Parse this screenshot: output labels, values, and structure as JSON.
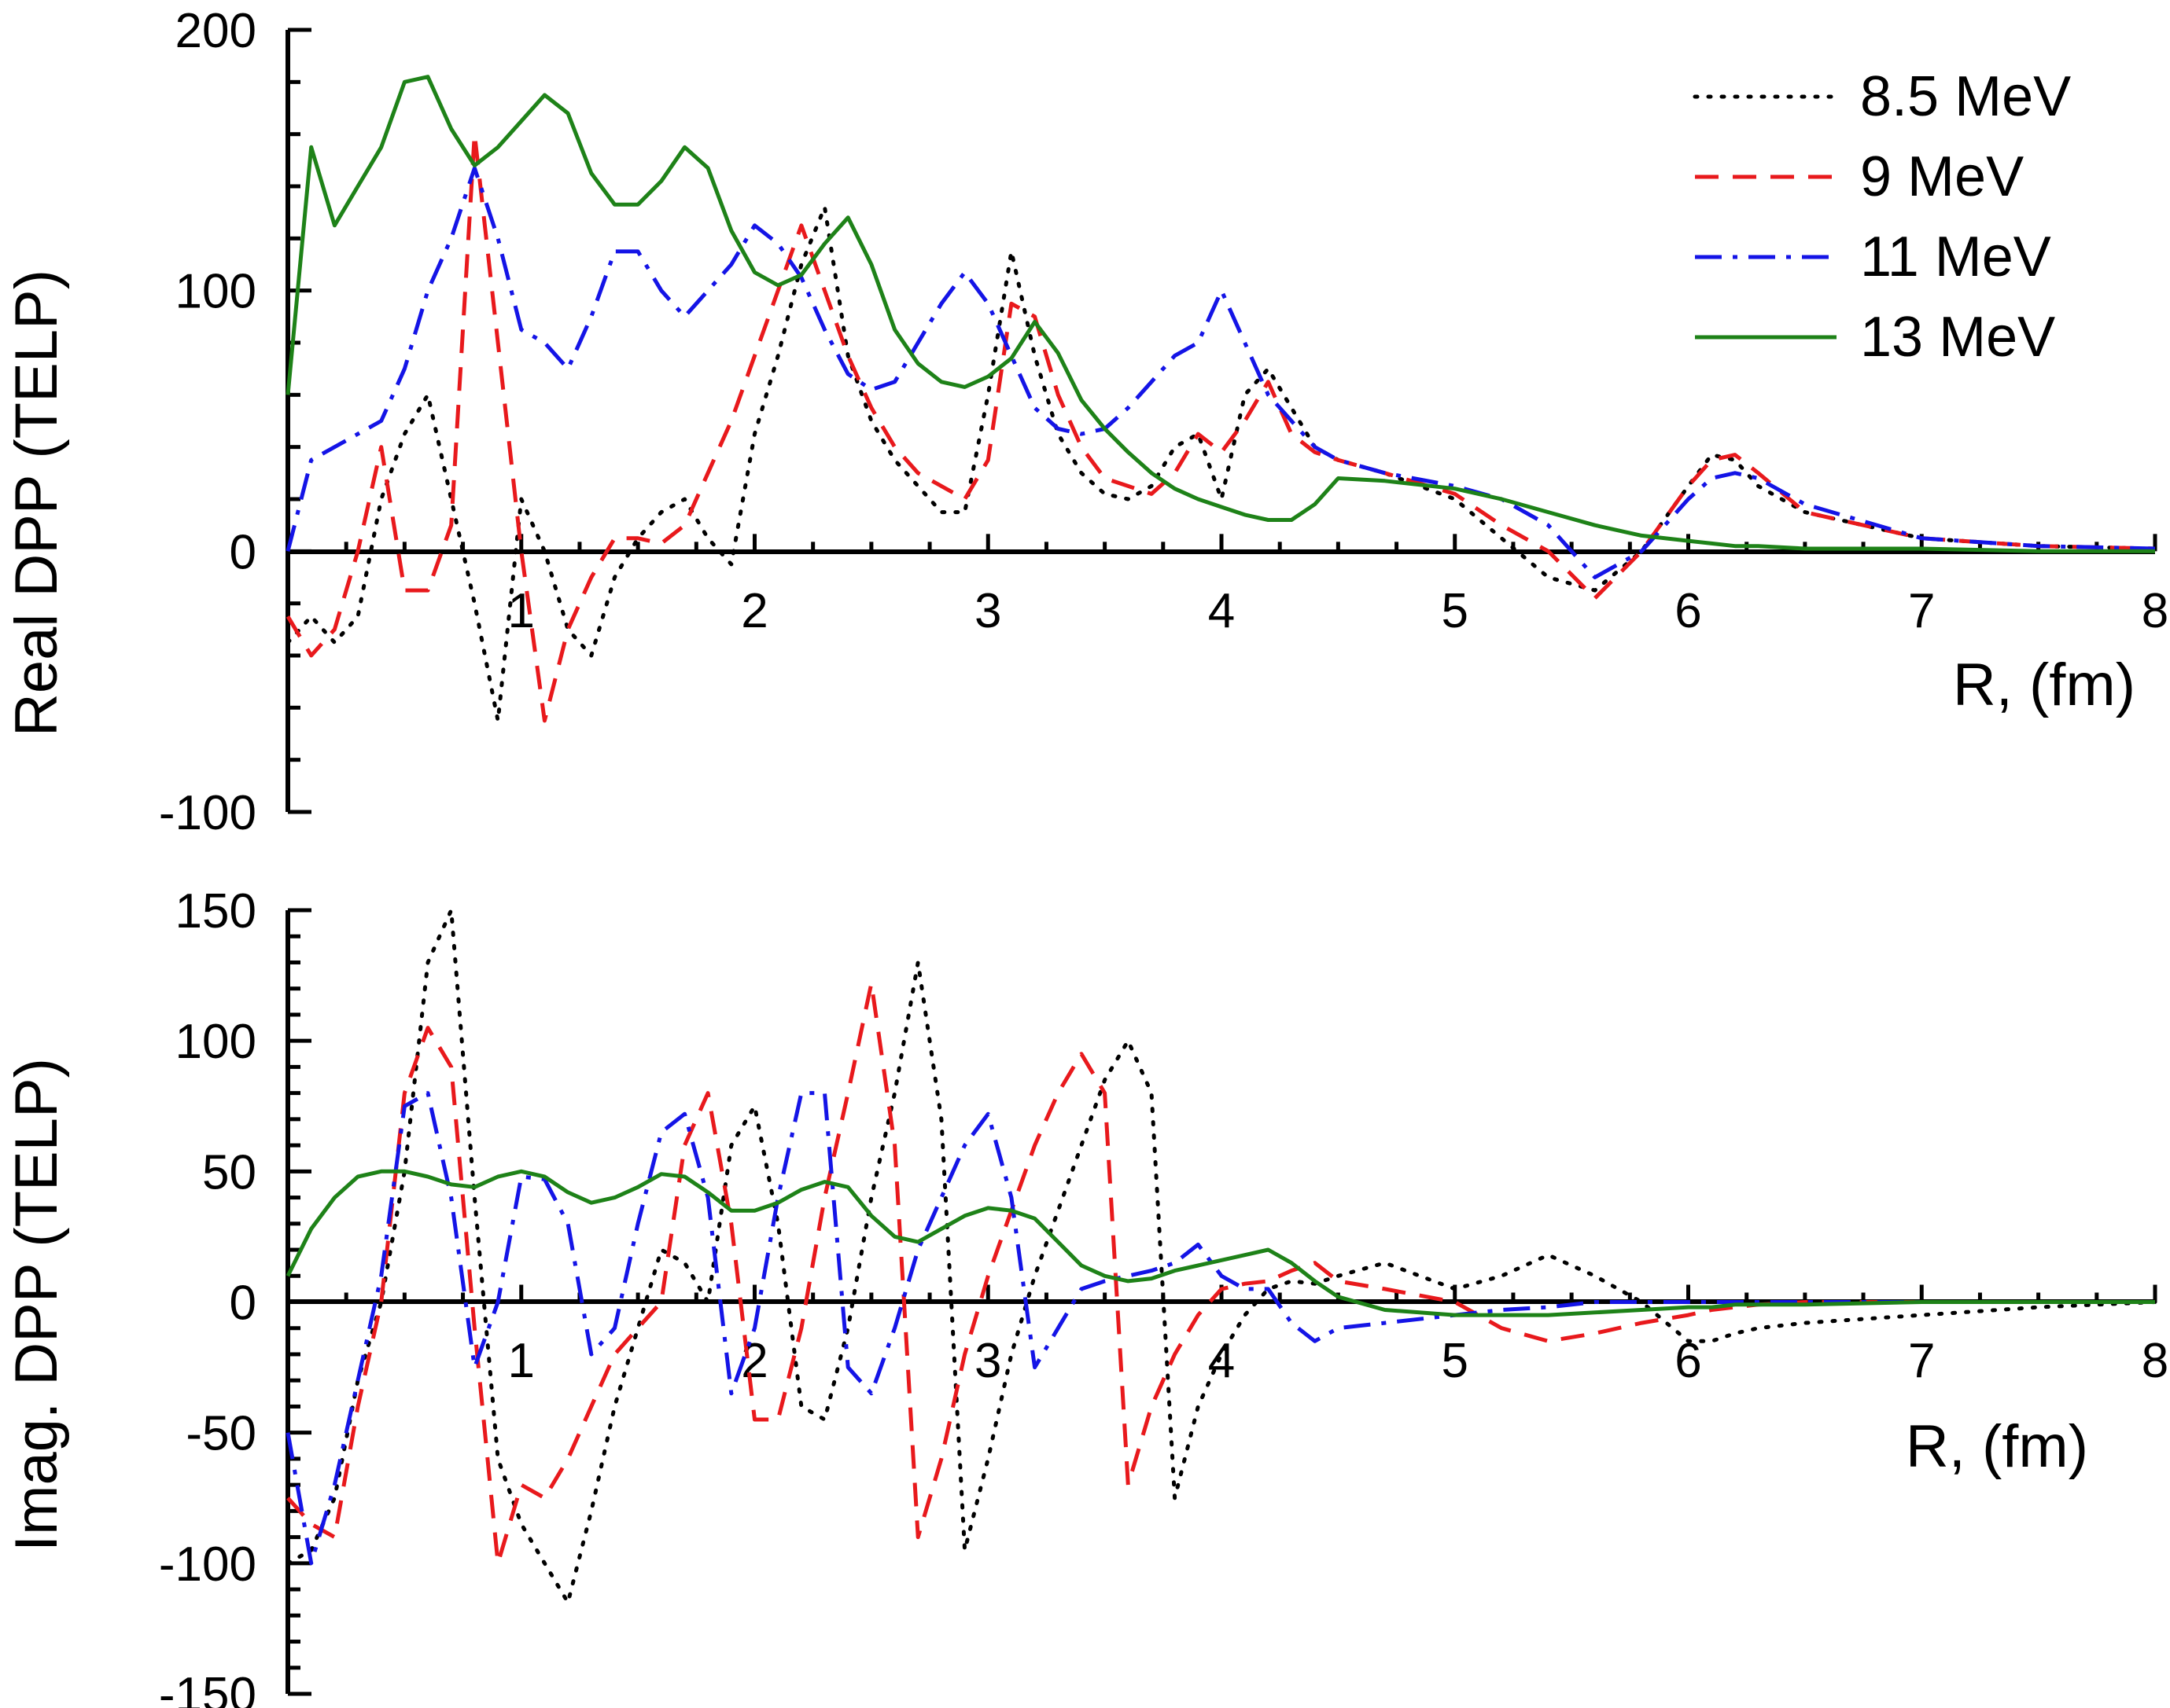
{
  "chart_data": [
    {
      "type": "line",
      "panel": "top",
      "ylabel": "Real DPP (TELP)",
      "xlabel": "R, (fm)",
      "xlim": [
        0,
        8
      ],
      "ylim": [
        -100,
        200
      ],
      "xticks": [
        "1",
        "2",
        "3",
        "4",
        "5",
        "6",
        "7",
        "8"
      ],
      "yticks": [
        "200",
        "100",
        "0",
        "-100"
      ],
      "grid": false,
      "legend_position": "top-right",
      "series": [
        {
          "name": "8.5 MeV",
          "color": "#000000",
          "dash": "dotted",
          "x": [
            0.0,
            0.1,
            0.2,
            0.3,
            0.4,
            0.5,
            0.6,
            0.7,
            0.8,
            0.9,
            1.0,
            1.1,
            1.2,
            1.3,
            1.4,
            1.5,
            1.6,
            1.7,
            1.8,
            1.9,
            2.0,
            2.1,
            2.2,
            2.3,
            2.4,
            2.5,
            2.6,
            2.7,
            2.8,
            2.9,
            3.0,
            3.1,
            3.2,
            3.3,
            3.4,
            3.5,
            3.6,
            3.7,
            3.8,
            3.9,
            4.0,
            4.1,
            4.2,
            4.3,
            4.4,
            4.5,
            4.7,
            5.0,
            5.2,
            5.4,
            5.6,
            5.8,
            6.0,
            6.1,
            6.2,
            6.3,
            6.5,
            7.0,
            7.5,
            8.0
          ],
          "y": [
            -35,
            -25,
            -35,
            -25,
            20,
            45,
            60,
            20,
            -20,
            -65,
            20,
            0,
            -30,
            -40,
            -10,
            5,
            15,
            20,
            5,
            -5,
            45,
            75,
            110,
            132,
            75,
            50,
            35,
            25,
            15,
            15,
            60,
            115,
            75,
            45,
            30,
            22,
            20,
            25,
            40,
            45,
            20,
            60,
            70,
            55,
            40,
            35,
            30,
            20,
            5,
            -10,
            -15,
            0,
            25,
            37,
            35,
            25,
            15,
            5,
            2,
            1
          ]
        },
        {
          "name": "9 MeV",
          "color": "#e8191c",
          "dash": "dashed",
          "x": [
            0.0,
            0.1,
            0.2,
            0.3,
            0.4,
            0.5,
            0.6,
            0.7,
            0.8,
            0.9,
            1.0,
            1.1,
            1.2,
            1.3,
            1.4,
            1.5,
            1.6,
            1.7,
            1.8,
            1.9,
            2.0,
            2.1,
            2.2,
            2.3,
            2.4,
            2.5,
            2.6,
            2.7,
            2.8,
            2.9,
            3.0,
            3.1,
            3.2,
            3.3,
            3.4,
            3.5,
            3.6,
            3.7,
            3.8,
            3.9,
            4.0,
            4.1,
            4.2,
            4.3,
            4.4,
            4.5,
            4.7,
            5.0,
            5.2,
            5.4,
            5.6,
            5.8,
            6.0,
            6.1,
            6.2,
            6.3,
            6.5,
            7.0,
            7.5,
            8.0
          ],
          "y": [
            -25,
            -40,
            -30,
            0,
            40,
            -15,
            -15,
            10,
            160,
            80,
            0,
            -65,
            -30,
            -10,
            5,
            5,
            3,
            10,
            30,
            50,
            75,
            100,
            125,
            100,
            75,
            55,
            40,
            30,
            25,
            20,
            35,
            95,
            90,
            60,
            40,
            28,
            25,
            22,
            30,
            45,
            38,
            50,
            65,
            45,
            38,
            35,
            30,
            22,
            10,
            0,
            -18,
            0,
            25,
            35,
            37,
            30,
            15,
            5,
            2,
            1
          ]
        },
        {
          "name": "11 MeV",
          "color": "#1414e6",
          "dash": "dashdot",
          "x": [
            0.0,
            0.1,
            0.2,
            0.3,
            0.4,
            0.5,
            0.6,
            0.7,
            0.8,
            0.9,
            1.0,
            1.1,
            1.2,
            1.3,
            1.4,
            1.5,
            1.6,
            1.7,
            1.8,
            1.9,
            2.0,
            2.1,
            2.2,
            2.3,
            2.4,
            2.5,
            2.6,
            2.7,
            2.8,
            2.9,
            3.0,
            3.1,
            3.2,
            3.3,
            3.4,
            3.5,
            3.6,
            3.7,
            3.8,
            3.9,
            4.0,
            4.1,
            4.2,
            4.3,
            4.4,
            4.5,
            4.7,
            5.0,
            5.2,
            5.4,
            5.6,
            5.8,
            6.0,
            6.1,
            6.2,
            6.3,
            6.5,
            7.0,
            7.5,
            8.0
          ],
          "y": [
            0,
            35,
            40,
            45,
            50,
            70,
            100,
            120,
            147,
            120,
            85,
            80,
            70,
            90,
            115,
            115,
            100,
            90,
            100,
            110,
            125,
            118,
            105,
            85,
            68,
            62,
            65,
            80,
            95,
            107,
            95,
            75,
            55,
            47,
            45,
            47,
            55,
            65,
            75,
            80,
            100,
            80,
            60,
            50,
            40,
            35,
            30,
            25,
            20,
            10,
            -10,
            0,
            20,
            28,
            30,
            28,
            18,
            5,
            2,
            1
          ]
        },
        {
          "name": "13 MeV",
          "color": "#1e8218",
          "dash": "solid",
          "x": [
            0.0,
            0.1,
            0.2,
            0.3,
            0.4,
            0.5,
            0.6,
            0.7,
            0.8,
            0.9,
            1.0,
            1.1,
            1.2,
            1.3,
            1.4,
            1.5,
            1.6,
            1.7,
            1.8,
            1.9,
            2.0,
            2.1,
            2.2,
            2.3,
            2.4,
            2.5,
            2.6,
            2.7,
            2.8,
            2.9,
            3.0,
            3.1,
            3.2,
            3.3,
            3.4,
            3.5,
            3.6,
            3.7,
            3.8,
            3.9,
            4.0,
            4.1,
            4.2,
            4.3,
            4.4,
            4.5,
            4.7,
            5.0,
            5.2,
            5.4,
            5.6,
            5.8,
            6.0,
            6.1,
            6.2,
            6.3,
            6.5,
            7.0,
            7.5,
            8.0
          ],
          "y": [
            60,
            155,
            125,
            140,
            155,
            180,
            182,
            162,
            148,
            155,
            165,
            175,
            168,
            145,
            133,
            133,
            142,
            155,
            147,
            123,
            107,
            102,
            106,
            118,
            128,
            110,
            85,
            72,
            65,
            63,
            67,
            74,
            88,
            76,
            58,
            47,
            38,
            30,
            24,
            20,
            17,
            14,
            12,
            12,
            18,
            28,
            27,
            24,
            20,
            15,
            10,
            6,
            4,
            3,
            2,
            2,
            1,
            1,
            0,
            0
          ]
        }
      ]
    },
    {
      "type": "line",
      "panel": "bottom",
      "ylabel": "Imag. DPP (TELP)",
      "xlabel": "R, (fm)",
      "xlim": [
        0,
        8
      ],
      "ylim": [
        -150,
        150
      ],
      "xticks": [
        "1",
        "2",
        "3",
        "4",
        "5",
        "6",
        "7",
        "8"
      ],
      "yticks": [
        "150",
        "100",
        "50",
        "0",
        "-50",
        "-100",
        "-150"
      ],
      "grid": false,
      "series": [
        {
          "name": "8.5 MeV",
          "color": "#000000",
          "dash": "dotted",
          "x": [
            0.0,
            0.1,
            0.2,
            0.3,
            0.4,
            0.5,
            0.6,
            0.7,
            0.8,
            0.9,
            1.0,
            1.1,
            1.2,
            1.3,
            1.4,
            1.5,
            1.6,
            1.7,
            1.8,
            1.9,
            2.0,
            2.1,
            2.2,
            2.3,
            2.4,
            2.5,
            2.6,
            2.7,
            2.8,
            2.9,
            3.0,
            3.1,
            3.2,
            3.3,
            3.4,
            3.5,
            3.6,
            3.7,
            3.8,
            3.9,
            4.0,
            4.1,
            4.2,
            4.3,
            4.4,
            4.5,
            4.7,
            5.0,
            5.2,
            5.4,
            5.6,
            5.8,
            6.0,
            6.1,
            6.2,
            6.3,
            6.5,
            7.0,
            7.5,
            8.0
          ],
          "y": [
            -100,
            -95,
            -75,
            -30,
            0,
            50,
            130,
            150,
            40,
            -60,
            -85,
            -100,
            -115,
            -80,
            -40,
            -10,
            20,
            15,
            0,
            60,
            75,
            30,
            -40,
            -45,
            -10,
            40,
            80,
            130,
            70,
            -95,
            -60,
            -20,
            10,
            35,
            60,
            85,
            100,
            80,
            -75,
            -40,
            -20,
            -5,
            5,
            8,
            7,
            10,
            15,
            5,
            10,
            18,
            10,
            0,
            -15,
            -15,
            -12,
            -10,
            -8,
            -5,
            -2,
            0
          ]
        },
        {
          "name": "9 MeV",
          "color": "#e8191c",
          "dash": "dashed",
          "x": [
            0.0,
            0.1,
            0.2,
            0.3,
            0.4,
            0.5,
            0.6,
            0.7,
            0.8,
            0.9,
            1.0,
            1.1,
            1.2,
            1.3,
            1.4,
            1.5,
            1.6,
            1.7,
            1.8,
            1.9,
            2.0,
            2.1,
            2.2,
            2.3,
            2.4,
            2.5,
            2.6,
            2.7,
            2.8,
            2.9,
            3.0,
            3.1,
            3.2,
            3.3,
            3.4,
            3.5,
            3.6,
            3.7,
            3.8,
            3.9,
            4.0,
            4.1,
            4.2,
            4.3,
            4.4,
            4.5,
            4.7,
            5.0,
            5.2,
            5.4,
            5.6,
            5.8,
            6.0,
            6.1,
            6.2,
            6.3,
            6.5,
            7.0,
            7.5,
            8.0
          ],
          "y": [
            -75,
            -85,
            -90,
            -40,
            0,
            80,
            105,
            90,
            -10,
            -100,
            -70,
            -75,
            -60,
            -40,
            -20,
            -10,
            0,
            60,
            80,
            30,
            -45,
            -45,
            -10,
            40,
            80,
            122,
            60,
            -90,
            -60,
            -20,
            10,
            35,
            60,
            80,
            95,
            80,
            -70,
            -40,
            -20,
            -5,
            5,
            7,
            8,
            12,
            15,
            8,
            5,
            0,
            -10,
            -15,
            -12,
            -8,
            -5,
            -3,
            -2,
            -1,
            0,
            0,
            0,
            0
          ]
        },
        {
          "name": "11 MeV",
          "color": "#1414e6",
          "dash": "dashdot",
          "x": [
            0.0,
            0.1,
            0.2,
            0.3,
            0.4,
            0.5,
            0.6,
            0.7,
            0.8,
            0.9,
            1.0,
            1.1,
            1.2,
            1.3,
            1.4,
            1.5,
            1.6,
            1.7,
            1.8,
            1.9,
            2.0,
            2.1,
            2.2,
            2.3,
            2.4,
            2.5,
            2.6,
            2.7,
            2.8,
            2.9,
            3.0,
            3.1,
            3.2,
            3.3,
            3.4,
            3.5,
            3.6,
            3.7,
            3.8,
            3.9,
            4.0,
            4.1,
            4.2,
            4.3,
            4.4,
            4.5,
            4.7,
            5.0,
            5.2,
            5.4,
            5.6,
            5.8,
            6.0,
            6.1,
            6.2,
            6.3,
            6.5,
            7.0,
            7.5,
            8.0
          ],
          "y": [
            -50,
            -100,
            -70,
            -30,
            10,
            75,
            80,
            40,
            -25,
            0,
            48,
            47,
            30,
            -20,
            -10,
            30,
            65,
            72,
            40,
            -35,
            -10,
            40,
            80,
            80,
            -25,
            -35,
            -10,
            20,
            40,
            60,
            72,
            40,
            -25,
            -10,
            5,
            8,
            10,
            12,
            15,
            22,
            10,
            5,
            5,
            -8,
            -15,
            -10,
            -8,
            -5,
            -3,
            -2,
            0,
            0,
            0,
            0,
            0,
            0,
            0,
            0,
            0,
            0
          ]
        },
        {
          "name": "13 MeV",
          "color": "#1e8218",
          "dash": "solid",
          "x": [
            0.0,
            0.1,
            0.2,
            0.3,
            0.4,
            0.5,
            0.6,
            0.7,
            0.8,
            0.9,
            1.0,
            1.1,
            1.2,
            1.3,
            1.4,
            1.5,
            1.6,
            1.7,
            1.8,
            1.9,
            2.0,
            2.1,
            2.2,
            2.3,
            2.4,
            2.5,
            2.6,
            2.7,
            2.8,
            2.9,
            3.0,
            3.1,
            3.2,
            3.3,
            3.4,
            3.5,
            3.6,
            3.7,
            3.8,
            3.9,
            4.0,
            4.1,
            4.2,
            4.3,
            4.4,
            4.5,
            4.7,
            5.0,
            5.2,
            5.4,
            5.6,
            5.8,
            6.0,
            6.1,
            6.2,
            6.3,
            6.5,
            7.0,
            7.5,
            8.0
          ],
          "y": [
            10,
            28,
            40,
            48,
            50,
            50,
            48,
            45,
            44,
            48,
            50,
            48,
            42,
            38,
            40,
            44,
            49,
            48,
            42,
            35,
            35,
            38,
            43,
            46,
            44,
            33,
            25,
            23,
            28,
            33,
            36,
            35,
            32,
            23,
            14,
            10,
            8,
            9,
            12,
            14,
            16,
            18,
            20,
            15,
            8,
            2,
            -3,
            -5,
            -5,
            -5,
            -4,
            -3,
            -2,
            -2,
            -1,
            -1,
            -1,
            0,
            0,
            0
          ]
        }
      ]
    }
  ]
}
